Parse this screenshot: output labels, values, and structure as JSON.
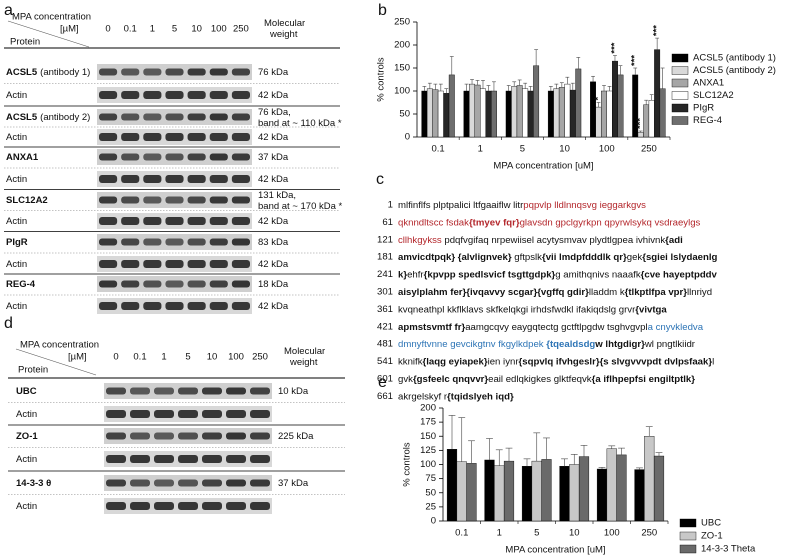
{
  "panel_labels": [
    "a",
    "b",
    "c",
    "d",
    "e"
  ],
  "blot_a": {
    "header_top": "MPA concentration",
    "header_unit": "[µM]",
    "header_protein": "Protein",
    "weight_header": [
      "Molecular",
      "weight"
    ],
    "lanes": [
      "0",
      "0.1",
      "1",
      "5",
      "10",
      "100",
      "250"
    ],
    "rows": [
      {
        "label": "ACSL5",
        "suffix": "(antibody 1)",
        "weight": [
          "76 kDa"
        ]
      },
      {
        "label": "Actin",
        "weight": [
          "42 kDa"
        ]
      },
      {
        "label": "ACSL5",
        "suffix": "(antibody 2)",
        "weight": [
          "76 kDa,",
          "band at ~ 110 kDa *"
        ]
      },
      {
        "label": "Actin",
        "weight": [
          "42 kDa"
        ]
      },
      {
        "label": "ANXA1",
        "weight": [
          "37 kDa"
        ]
      },
      {
        "label": "Actin",
        "weight": [
          "42 kDa"
        ]
      },
      {
        "label": "SLC12A2",
        "weight": [
          "131 kDa,",
          "band at ~ 170 kDa *"
        ]
      },
      {
        "label": "Actin",
        "weight": [
          "42 kDa"
        ]
      },
      {
        "label": "PIgR",
        "weight": [
          "83 kDa"
        ]
      },
      {
        "label": "Actin",
        "weight": [
          "42 kDa"
        ]
      },
      {
        "label": "REG-4",
        "weight": [
          "18 kDa"
        ]
      },
      {
        "label": "Actin",
        "weight": [
          "42 kDa"
        ]
      }
    ]
  },
  "blot_d": {
    "header_top": "MPA concentration",
    "header_unit": "[µM]",
    "header_protein": "Protein",
    "weight_header": [
      "Molecular",
      "weight"
    ],
    "lanes": [
      "0",
      "0.1",
      "1",
      "5",
      "10",
      "100",
      "250"
    ],
    "rows": [
      {
        "label": "UBC",
        "weight": [
          "10 kDa"
        ]
      },
      {
        "label": "Actin"
      },
      {
        "label": "ZO-1",
        "weight": [
          "225 kDa"
        ]
      },
      {
        "label": "Actin"
      },
      {
        "label": "14-3-3 θ",
        "weight": [
          "37 kDa"
        ]
      },
      {
        "label": "Actin"
      }
    ]
  },
  "chart_data": [
    {
      "type": "bar",
      "ylabel": "% controls",
      "xlabel": "MPA concentration [uM]",
      "categories": [
        "0.1",
        "1",
        "5",
        "10",
        "100",
        "250"
      ],
      "ylim": [
        0,
        250
      ],
      "yticks": [
        0,
        50,
        100,
        150,
        200,
        250
      ],
      "legend": "right",
      "series": [
        {
          "name": "ACSL5 (antibody 1)",
          "color": "#000000",
          "values": [
            100,
            100,
            100,
            100,
            120,
            135
          ],
          "errors": [
            10,
            15,
            12,
            10,
            12,
            15
          ]
        },
        {
          "name": "ACSL5 (antibody 2)",
          "color": "#d9d9d9",
          "values": [
            105,
            115,
            110,
            105,
            65,
            10
          ],
          "errors": [
            12,
            10,
            10,
            10,
            10,
            3
          ]
        },
        {
          "name": "ANXA1",
          "color": "#a6a6a6",
          "values": [
            103,
            113,
            112,
            108,
            100,
            70
          ],
          "errors": [
            12,
            10,
            12,
            10,
            12,
            10
          ]
        },
        {
          "name": "SLC12A2",
          "color": "#ffffff",
          "values": [
            100,
            105,
            105,
            115,
            100,
            80
          ],
          "errors": [
            15,
            18,
            12,
            15,
            10,
            12
          ]
        },
        {
          "name": "PIgR",
          "color": "#262626",
          "values": [
            95,
            100,
            100,
            102,
            165,
            190
          ],
          "errors": [
            10,
            12,
            10,
            15,
            12,
            25
          ]
        },
        {
          "name": "REG-4",
          "color": "#6e6e6e",
          "values": [
            135,
            100,
            155,
            148,
            135,
            105
          ],
          "errors": [
            40,
            20,
            35,
            25,
            20,
            45
          ]
        }
      ],
      "annotations": [
        {
          "text": "*",
          "series": 1,
          "category": 4
        },
        {
          "text": "***",
          "series": 4,
          "category": 4
        },
        {
          "text": "***",
          "series": 0,
          "category": 5
        },
        {
          "text": "***",
          "series": 1,
          "category": 5
        },
        {
          "text": "***",
          "series": 4,
          "category": 5
        }
      ]
    },
    {
      "type": "bar",
      "ylabel": "% controls",
      "xlabel": "MPA concentration [uM]",
      "categories": [
        "0.1",
        "1",
        "5",
        "10",
        "100",
        "250"
      ],
      "ylim": [
        0,
        200
      ],
      "yticks": [
        0,
        25,
        50,
        75,
        100,
        125,
        150,
        175,
        200
      ],
      "legend": "right",
      "series": [
        {
          "name": "UBC",
          "color": "#000000",
          "values": [
            127,
            108,
            97,
            97,
            92,
            91
          ],
          "errors": [
            60,
            38,
            13,
            13,
            3,
            3
          ]
        },
        {
          "name": "ZO-1",
          "color": "#c8c8c8",
          "values": [
            105,
            98,
            106,
            100,
            128,
            150
          ],
          "errors": [
            78,
            28,
            50,
            18,
            5,
            17
          ]
        },
        {
          "name": "14-3-3 Theta",
          "color": "#6a6a6a",
          "values": [
            102,
            106,
            109,
            114,
            117,
            115
          ],
          "errors": [
            40,
            23,
            38,
            20,
            12,
            6
          ]
        }
      ]
    }
  ],
  "sequence_c": {
    "lines": [
      {
        "num": "1",
        "segments": [
          {
            "text": "mlfinflfs plptpalici ltfgaaiflw litr",
            "style": "plain"
          },
          {
            "text": "pqpvlp lldlnnqsvg ieggarkgvs",
            "style": "red"
          }
        ]
      },
      {
        "num": "61",
        "segments": [
          {
            "text": "qknndltscc fsdak",
            "style": "red"
          },
          {
            "text": "{tmyev fqr}",
            "style": "redbold"
          },
          {
            "text": "glavsdn gpclgyrkpn qpyrwlsykq vsdraeylgs",
            "style": "red"
          }
        ]
      },
      {
        "num": "121",
        "segments": [
          {
            "text": "cllhkgykss",
            "style": "red"
          },
          {
            "text": " pdqfvgifaq nrpewiisel acytysmvav plydtlgpea ivhivnk",
            "style": "plain"
          },
          {
            "text": "{adi",
            "style": "bold"
          }
        ]
      },
      {
        "num": "181",
        "segments": [
          {
            "text": "amvicdtpqk} {alvlignvek}",
            "style": "bold"
          },
          {
            "text": " gftpslk",
            "style": "plain"
          },
          {
            "text": "{vii lmdpfdddlk qr}",
            "style": "bold"
          },
          {
            "text": "gek",
            "style": "plain"
          },
          {
            "text": "{sgiei lslydaenlg",
            "style": "bold"
          }
        ]
      },
      {
        "num": "241",
        "segments": [
          {
            "text": "k}",
            "style": "bold"
          },
          {
            "text": "ehfr",
            "style": "plain"
          },
          {
            "text": "{kpvpp spedlsvicf tsgttgdpk}",
            "style": "bold"
          },
          {
            "text": "g amithqnivs naaafk",
            "style": "plain"
          },
          {
            "text": "{cve hayeptpddv",
            "style": "bold"
          }
        ]
      },
      {
        "num": "301",
        "segments": [
          {
            "text": "aisylplahm fer}{ivqavvy scgar}{vgffq gdir}",
            "style": "bold"
          },
          {
            "text": "lladdm k",
            "style": "plain"
          },
          {
            "text": "{tlkptlfpa vpr}",
            "style": "bold"
          },
          {
            "text": "llnriyd",
            "style": "plain"
          }
        ]
      },
      {
        "num": "361",
        "segments": [
          {
            "text": "kvqneathpl kkflklavs skfkelqkgi irhdsfwdkl ifakiqdslg grvr",
            "style": "plain"
          },
          {
            "text": "{vivtga",
            "style": "bold"
          }
        ]
      },
      {
        "num": "421",
        "segments": [
          {
            "text": "apmstsvmtf fr}",
            "style": "bold"
          },
          {
            "text": "aamgcqvy eaygqtectg gctftlpgdw tsghvgvpl",
            "style": "plain"
          },
          {
            "text": "a cnyvkledva",
            "style": "blue"
          }
        ]
      },
      {
        "num": "481",
        "segments": [
          {
            "text": "dmnyftvnne gevcikgtnv fkgylkdpek ",
            "style": "blue"
          },
          {
            "text": "{tqealdsdg",
            "style": "bluebold"
          },
          {
            "text": "w lhtgdigr}",
            "style": "bold"
          },
          {
            "text": "wl pngtlkiidr",
            "style": "plain"
          }
        ]
      },
      {
        "num": "541",
        "segments": [
          {
            "text": "kknifk",
            "style": "plain"
          },
          {
            "text": "{laqg eyiapek}",
            "style": "bold"
          },
          {
            "text": "ien iynr",
            "style": "plain"
          },
          {
            "text": "{sqpvlq ifvhgeslr}{s slvgvvvpdt dvlpsfaak}",
            "style": "bold"
          },
          {
            "text": "l",
            "style": "plain"
          }
        ]
      },
      {
        "num": "601",
        "segments": [
          {
            "text": "gvk",
            "style": "plain"
          },
          {
            "text": "{gsfeelc qnqvvr}",
            "style": "bold"
          },
          {
            "text": "eail edlqkigkes glktfeqvk",
            "style": "plain"
          },
          {
            "text": "{a iflhpepfsi engiltptlk}",
            "style": "bold"
          }
        ]
      },
      {
        "num": "661",
        "segments": [
          {
            "text": "akrgelskyf r",
            "style": "plain"
          },
          {
            "text": "{tqidslyeh iqd}",
            "style": "bold"
          }
        ]
      }
    ]
  }
}
